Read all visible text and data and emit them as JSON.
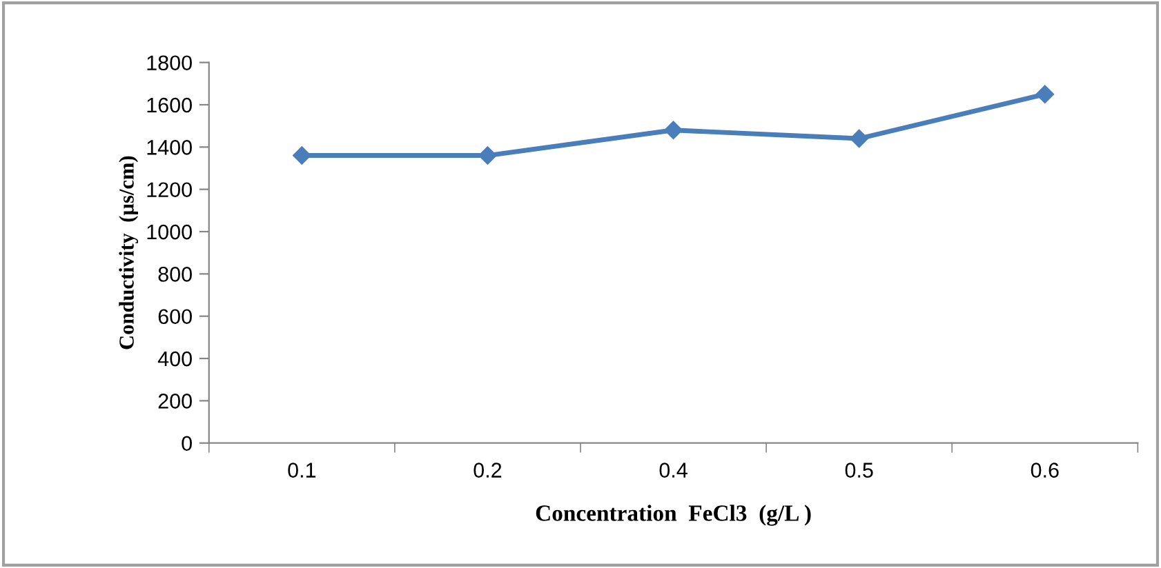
{
  "chart_data": {
    "type": "line",
    "xlabel": "Concentration  FeCl3  (g/L )",
    "ylabel": "Conductivity  (µs/cm)",
    "categories": [
      "0.1",
      "0.2",
      "0.4",
      "0.5",
      "0.6"
    ],
    "series": [
      {
        "color": "#4a7ebb",
        "values": [
          1360,
          1360,
          1480,
          1440,
          1650
        ]
      }
    ],
    "ylim": [
      0,
      1800
    ],
    "yticks": [
      0,
      200,
      400,
      600,
      800,
      1000,
      1200,
      1400,
      1600,
      1800
    ],
    "marker": "diamond",
    "line_style": "solid",
    "grid": false,
    "legend": false
  }
}
